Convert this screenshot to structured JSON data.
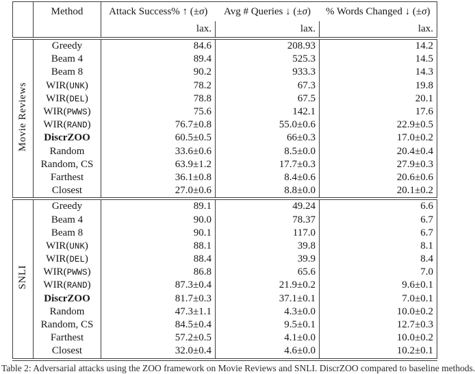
{
  "page": {
    "background": "#ffffff",
    "text_color": "#161616",
    "rule_color": "#3c3c3c"
  },
  "table": {
    "headers": {
      "method": "Method",
      "columns": [
        {
          "prefix": "Attack Success% ",
          "arrow": "↑",
          "pm": " (±",
          "sigma": "σ",
          "suffix": ")"
        },
        {
          "prefix": "Avg # Queries ",
          "arrow": "↓",
          "pm": " (±",
          "sigma": "σ",
          "suffix": ")"
        },
        {
          "prefix": "% Words Changed ",
          "arrow": "↓",
          "pm": " (±",
          "sigma": "σ",
          "suffix": ")"
        }
      ],
      "sub_label": "lax."
    },
    "sections": [
      {
        "group": "Movie Reviews",
        "rows": [
          {
            "method_pre": "Greedy",
            "method_mono": "",
            "method_post": "",
            "bold": false,
            "values": [
              "84.6",
              "208.93",
              "14.2"
            ]
          },
          {
            "method_pre": "Beam 4",
            "method_mono": "",
            "method_post": "",
            "bold": false,
            "values": [
              "89.4",
              "525.3",
              "14.5"
            ]
          },
          {
            "method_pre": "Beam 8",
            "method_mono": "",
            "method_post": "",
            "bold": false,
            "values": [
              "90.2",
              "933.3",
              "14.3"
            ]
          },
          {
            "method_pre": "WIR(",
            "method_mono": "UNK",
            "method_post": ")",
            "bold": false,
            "values": [
              "78.2",
              "67.3",
              "19.8"
            ]
          },
          {
            "method_pre": "WIR(",
            "method_mono": "DEL",
            "method_post": ")",
            "bold": false,
            "values": [
              "78.8",
              "67.5",
              "20.1"
            ]
          },
          {
            "method_pre": "WIR(",
            "method_mono": "PWWS",
            "method_post": ")",
            "bold": false,
            "values": [
              "75.6",
              "142.1",
              "17.6"
            ]
          },
          {
            "method_pre": "WIR(",
            "method_mono": "RAND",
            "method_post": ")",
            "bold": false,
            "values": [
              "76.7±0.8",
              "55.0±0.6",
              "22.9±0.5"
            ]
          },
          {
            "method_pre": "DiscrZOO",
            "method_mono": "",
            "method_post": "",
            "bold": true,
            "values": [
              "60.5±0.5",
              "66±0.3",
              "17.0±0.2"
            ]
          },
          {
            "method_pre": "Random",
            "method_mono": "",
            "method_post": "",
            "bold": false,
            "values": [
              "33.6±0.6",
              "8.5±0.0",
              "20.4±0.4"
            ]
          },
          {
            "method_pre": "Random, CS",
            "method_mono": "",
            "method_post": "",
            "bold": false,
            "values": [
              "63.9±1.2",
              "17.7±0.3",
              "27.9±0.3"
            ]
          },
          {
            "method_pre": "Farthest",
            "method_mono": "",
            "method_post": "",
            "bold": false,
            "values": [
              "36.1±0.8",
              "8.4±0.6",
              "20.6±0.6"
            ]
          },
          {
            "method_pre": "Closest",
            "method_mono": "",
            "method_post": "",
            "bold": false,
            "values": [
              "27.0±0.6",
              "8.8±0.0",
              "20.1±0.2"
            ]
          }
        ]
      },
      {
        "group": "SNLI",
        "rows": [
          {
            "method_pre": "Greedy",
            "method_mono": "",
            "method_post": "",
            "bold": false,
            "values": [
              "89.1",
              "49.24",
              "6.6"
            ]
          },
          {
            "method_pre": "Beam 4",
            "method_mono": "",
            "method_post": "",
            "bold": false,
            "values": [
              "90.0",
              "78.37",
              "6.7"
            ]
          },
          {
            "method_pre": "Beam 8",
            "method_mono": "",
            "method_post": "",
            "bold": false,
            "values": [
              "90.1",
              "117.0",
              "6.7"
            ]
          },
          {
            "method_pre": "WIR(",
            "method_mono": "UNK",
            "method_post": ")",
            "bold": false,
            "values": [
              "88.1",
              "39.8",
              "8.1"
            ]
          },
          {
            "method_pre": "WIR(",
            "method_mono": "DEL",
            "method_post": ")",
            "bold": false,
            "values": [
              "88.4",
              "39.9",
              "8.4"
            ]
          },
          {
            "method_pre": "WIR(",
            "method_mono": "PWWS",
            "method_post": ")",
            "bold": false,
            "values": [
              "86.8",
              "65.6",
              "7.0"
            ]
          },
          {
            "method_pre": "WIR(",
            "method_mono": "RAND",
            "method_post": ")",
            "bold": false,
            "values": [
              "87.3±0.4",
              "21.9±0.2",
              "9.6±0.1"
            ]
          },
          {
            "method_pre": "DiscrZOO",
            "method_mono": "",
            "method_post": "",
            "bold": true,
            "values": [
              "81.7±0.3",
              "37.1±0.1",
              "7.0±0.1"
            ]
          },
          {
            "method_pre": "Random",
            "method_mono": "",
            "method_post": "",
            "bold": false,
            "values": [
              "47.3±1.1",
              "4.3±0.0",
              "10.0±0.2"
            ]
          },
          {
            "method_pre": "Random, CS",
            "method_mono": "",
            "method_post": "",
            "bold": false,
            "values": [
              "84.5±0.4",
              "9.5±0.1",
              "12.7±0.3"
            ]
          },
          {
            "method_pre": "Farthest",
            "method_mono": "",
            "method_post": "",
            "bold": false,
            "values": [
              "57.2±0.5",
              "4.1±0.0",
              "10.0±0.2"
            ]
          },
          {
            "method_pre": "Closest",
            "method_mono": "",
            "method_post": "",
            "bold": false,
            "values": [
              "32.0±0.4",
              "4.6±0.0",
              "10.2±0.1"
            ]
          }
        ]
      }
    ]
  },
  "caption": "Table 2: Adversarial attacks using the ZOO framework on Movie Reviews and SNLI. DiscrZOO compared to baseline methods."
}
